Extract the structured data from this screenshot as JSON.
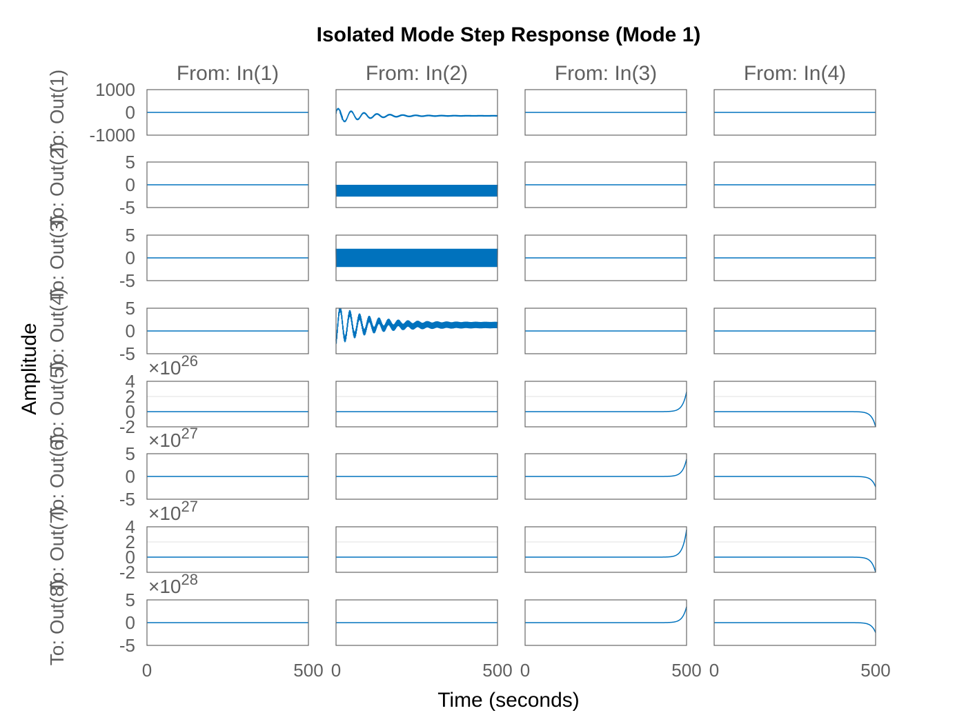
{
  "chart_data": {
    "type": "line",
    "title": "Isolated Mode Step Response (Mode 1)",
    "xlabel": "Time (seconds)",
    "ylabel": "Amplitude",
    "xlim": [
      0,
      500
    ],
    "xticks": [
      "0",
      "500"
    ],
    "columns": [
      "From: In(1)",
      "From: In(2)",
      "From: In(3)",
      "From: In(4)"
    ],
    "rows": [
      {
        "label": "To: Out(1)",
        "ylim": [
          -1000,
          1000
        ],
        "yticks": [
          "1000",
          "0",
          "-1000"
        ],
        "ytick_values": [
          1000,
          0,
          -1000
        ],
        "exponent": null,
        "responses": [
          {
            "kind": "zero"
          },
          {
            "kind": "damped",
            "amp": 600,
            "offset": -150,
            "period": 40,
            "tau": 90,
            "band": 30,
            "start": 0
          },
          {
            "kind": "zero"
          },
          {
            "kind": "zero"
          }
        ]
      },
      {
        "label": "To: Out(2)",
        "ylim": [
          -5,
          5
        ],
        "yticks": [
          "5",
          "0",
          "-5"
        ],
        "ytick_values": [
          5,
          0,
          -5
        ],
        "exponent": null,
        "responses": [
          {
            "kind": "zero"
          },
          {
            "kind": "band",
            "offset": -1.3,
            "band": 1.3
          },
          {
            "kind": "zero"
          },
          {
            "kind": "zero"
          }
        ]
      },
      {
        "label": "To: Out(3)",
        "ylim": [
          -5,
          5
        ],
        "yticks": [
          "5",
          "0",
          "-5"
        ],
        "ytick_values": [
          5,
          0,
          -5
        ],
        "exponent": null,
        "responses": [
          {
            "kind": "zero"
          },
          {
            "kind": "band",
            "offset": 0,
            "band": 2
          },
          {
            "kind": "zero"
          },
          {
            "kind": "zero"
          }
        ]
      },
      {
        "label": "To: Out(4)",
        "ylim": [
          -5,
          5
        ],
        "yticks": [
          "5",
          "0",
          "-5"
        ],
        "ytick_values": [
          5,
          0,
          -5
        ],
        "exponent": null,
        "responses": [
          {
            "kind": "zero"
          },
          {
            "kind": "damped",
            "amp": 3.5,
            "offset": 1.3,
            "period": 30,
            "tau": 90,
            "band": 0.7,
            "start": -2.5
          },
          {
            "kind": "zero"
          },
          {
            "kind": "zero"
          }
        ]
      },
      {
        "label": "To: Out(5)",
        "ylim": [
          -2,
          4
        ],
        "yticks": [
          "4",
          "2",
          "0",
          "-2"
        ],
        "ytick_values": [
          4,
          2,
          0,
          -2
        ],
        "exponent": "26",
        "responses": [
          {
            "kind": "zero"
          },
          {
            "kind": "zero"
          },
          {
            "kind": "growth",
            "end": 2.6
          },
          {
            "kind": "growth",
            "end": -2.0
          }
        ]
      },
      {
        "label": "To: Out(6)",
        "ylim": [
          -5,
          5
        ],
        "yticks": [
          "5",
          "0",
          "-5"
        ],
        "ytick_values": [
          5,
          0,
          -5
        ],
        "exponent": "27",
        "responses": [
          {
            "kind": "zero"
          },
          {
            "kind": "zero"
          },
          {
            "kind": "growth",
            "end": 3.8
          },
          {
            "kind": "growth",
            "end": -2.3
          }
        ]
      },
      {
        "label": "To: Out(7)",
        "ylim": [
          -2,
          4
        ],
        "yticks": [
          "4",
          "2",
          "0",
          "-2"
        ],
        "ytick_values": [
          4,
          2,
          0,
          -2
        ],
        "exponent": "27",
        "responses": [
          {
            "kind": "zero"
          },
          {
            "kind": "zero"
          },
          {
            "kind": "growth",
            "end": 3.6
          },
          {
            "kind": "growth",
            "end": -2.0
          }
        ]
      },
      {
        "label": "To: Out(8)",
        "ylim": [
          -5,
          5
        ],
        "yticks": [
          "5",
          "0",
          "-5"
        ],
        "ytick_values": [
          5,
          0,
          -5
        ],
        "exponent": "28",
        "responses": [
          {
            "kind": "zero"
          },
          {
            "kind": "zero"
          },
          {
            "kind": "growth",
            "end": 3.5
          },
          {
            "kind": "growth",
            "end": -2.2
          }
        ]
      }
    ]
  }
}
